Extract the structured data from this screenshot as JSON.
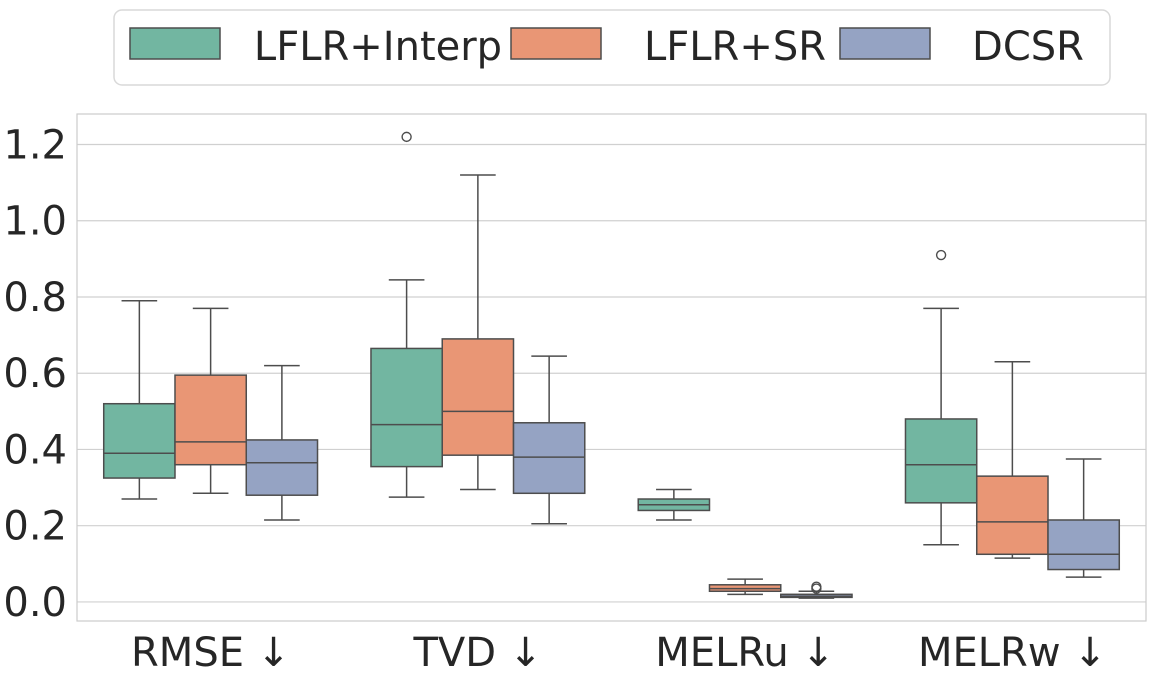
{
  "chart_data": {
    "type": "boxplot",
    "title": "",
    "xlabel": "",
    "ylabel": "",
    "ylim": [
      -0.05,
      1.28
    ],
    "yticks": [
      0.0,
      0.2,
      0.4,
      0.6,
      0.8,
      1.0,
      1.2
    ],
    "ytick_labels": [
      "0.0",
      "0.2",
      "0.4",
      "0.6",
      "0.8",
      "1.0",
      "1.2"
    ],
    "grid": "y",
    "legend_position": "top",
    "categories": [
      "RMSE ↓",
      "TVD ↓",
      "MELRu ↓",
      "MELRw ↓"
    ],
    "series": [
      {
        "name": "LFLR+Interp",
        "color": "#72b6a1",
        "boxes": [
          {
            "whislo": 0.27,
            "q1": 0.325,
            "med": 0.39,
            "q3": 0.52,
            "whishi": 0.79,
            "fliers": []
          },
          {
            "whislo": 0.275,
            "q1": 0.355,
            "med": 0.465,
            "q3": 0.665,
            "whishi": 0.845,
            "fliers": [
              1.22
            ]
          },
          {
            "whislo": 0.215,
            "q1": 0.24,
            "med": 0.255,
            "q3": 0.27,
            "whishi": 0.295,
            "fliers": []
          },
          {
            "whislo": 0.15,
            "q1": 0.26,
            "med": 0.36,
            "q3": 0.48,
            "whishi": 0.77,
            "fliers": [
              0.91
            ]
          }
        ]
      },
      {
        "name": "LFLR+SR",
        "color": "#e99675",
        "boxes": [
          {
            "whislo": 0.285,
            "q1": 0.36,
            "med": 0.42,
            "q3": 0.595,
            "whishi": 0.77,
            "fliers": []
          },
          {
            "whislo": 0.295,
            "q1": 0.385,
            "med": 0.5,
            "q3": 0.69,
            "whishi": 1.12,
            "fliers": []
          },
          {
            "whislo": 0.02,
            "q1": 0.028,
            "med": 0.035,
            "q3": 0.045,
            "whishi": 0.06,
            "fliers": []
          },
          {
            "whislo": 0.115,
            "q1": 0.125,
            "med": 0.21,
            "q3": 0.33,
            "whishi": 0.63,
            "fliers": []
          }
        ]
      },
      {
        "name": "DCSR",
        "color": "#95a3c3",
        "boxes": [
          {
            "whislo": 0.215,
            "q1": 0.28,
            "med": 0.365,
            "q3": 0.425,
            "whishi": 0.62,
            "fliers": []
          },
          {
            "whislo": 0.205,
            "q1": 0.285,
            "med": 0.38,
            "q3": 0.47,
            "whishi": 0.645,
            "fliers": []
          },
          {
            "whislo": 0.01,
            "q1": 0.012,
            "med": 0.015,
            "q3": 0.02,
            "whishi": 0.028,
            "fliers": [
              0.04,
              0.035
            ]
          },
          {
            "whislo": 0.065,
            "q1": 0.085,
            "med": 0.125,
            "q3": 0.215,
            "whishi": 0.375,
            "fliers": []
          }
        ]
      }
    ]
  }
}
